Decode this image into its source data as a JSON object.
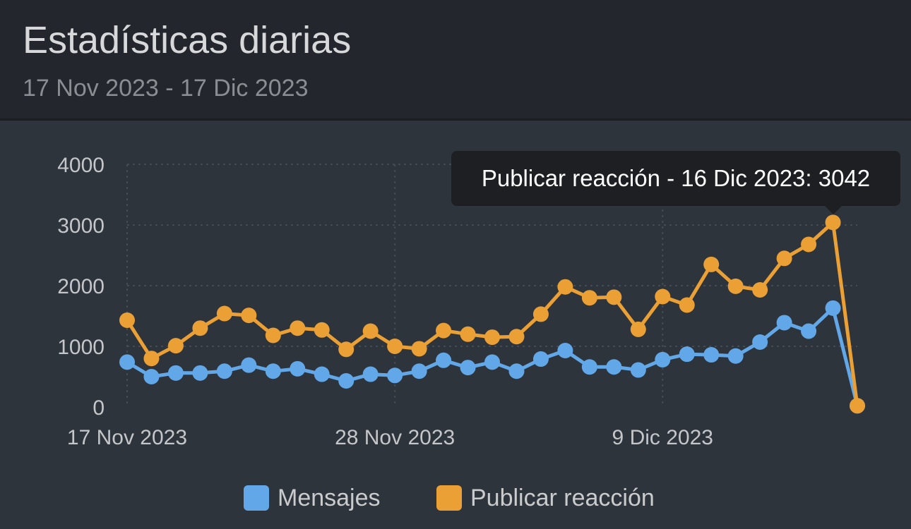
{
  "header": {
    "title": "Estadísticas diarias",
    "date_range": "17 Nov 2023 - 17 Dic 2023"
  },
  "tooltip": {
    "text": "Publicar reacción - 16 Dic 2023: 3042"
  },
  "colors": {
    "mensajes": "#62a8e8",
    "reaccion": "#eba035",
    "tick": "#c4c6c9",
    "grid": "#454b53"
  },
  "chart_data": {
    "type": "line",
    "x_tick_labels": [
      "17 Nov 2023",
      "28 Nov 2023",
      "9 Dic 2023"
    ],
    "x_tick_indices": [
      0,
      11,
      22
    ],
    "y_ticks": [
      0,
      1000,
      2000,
      3000,
      4000
    ],
    "ylim": [
      0,
      4000
    ],
    "grid": true,
    "legend_position": "bottom",
    "series": [
      {
        "name": "Mensajes",
        "color": "#62a8e8",
        "values": [
          740,
          500,
          560,
          560,
          590,
          690,
          590,
          630,
          540,
          430,
          540,
          520,
          590,
          770,
          650,
          740,
          590,
          790,
          930,
          660,
          660,
          610,
          780,
          870,
          860,
          840,
          1070,
          1390,
          1250,
          1630,
          20
        ]
      },
      {
        "name": "Publicar reacción",
        "color": "#eba035",
        "values": [
          1430,
          800,
          1010,
          1300,
          1540,
          1510,
          1180,
          1300,
          1270,
          950,
          1250,
          1000,
          960,
          1260,
          1200,
          1150,
          1160,
          1530,
          1980,
          1800,
          1810,
          1280,
          1820,
          1680,
          2350,
          1990,
          1930,
          2450,
          2680,
          3042,
          20
        ]
      }
    ]
  }
}
